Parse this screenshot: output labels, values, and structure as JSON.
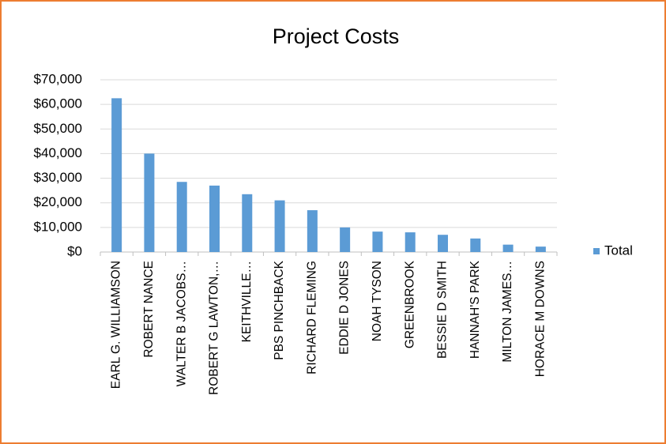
{
  "chart_data": {
    "type": "bar",
    "title": "Project Costs",
    "categories": [
      "EARL G. WILLIAMSON",
      "ROBERT NANCE",
      "WALTER B JACOBS…",
      "ROBERT G LAWTON,…",
      "KEITHVILLE…",
      "PBS PINCHBACK",
      "RICHARD FLEMING",
      "EDDIE D JONES",
      "NOAH TYSON",
      "GREENBROOK",
      "BESSIE D SMITH",
      "HANNAH'S PARK",
      "MILTON JAMES…",
      "HORACE M DOWNS"
    ],
    "series": [
      {
        "name": "Total",
        "color": "#5b9bd5",
        "values": [
          62500,
          40000,
          28500,
          27000,
          23500,
          21000,
          17000,
          10000,
          8300,
          8000,
          7000,
          5500,
          3000,
          2200
        ]
      }
    ],
    "ylim": [
      0,
      70000
    ],
    "yticks": [
      {
        "value": 0,
        "label": "$0"
      },
      {
        "value": 10000,
        "label": "$10,000"
      },
      {
        "value": 20000,
        "label": "$20,000"
      },
      {
        "value": 30000,
        "label": "$30,000"
      },
      {
        "value": 40000,
        "label": "$40,000"
      },
      {
        "value": 50000,
        "label": "$50,000"
      },
      {
        "value": 60000,
        "label": "$60,000"
      },
      {
        "value": 70000,
        "label": "$70,000"
      }
    ],
    "grid": true,
    "legend": "right"
  }
}
